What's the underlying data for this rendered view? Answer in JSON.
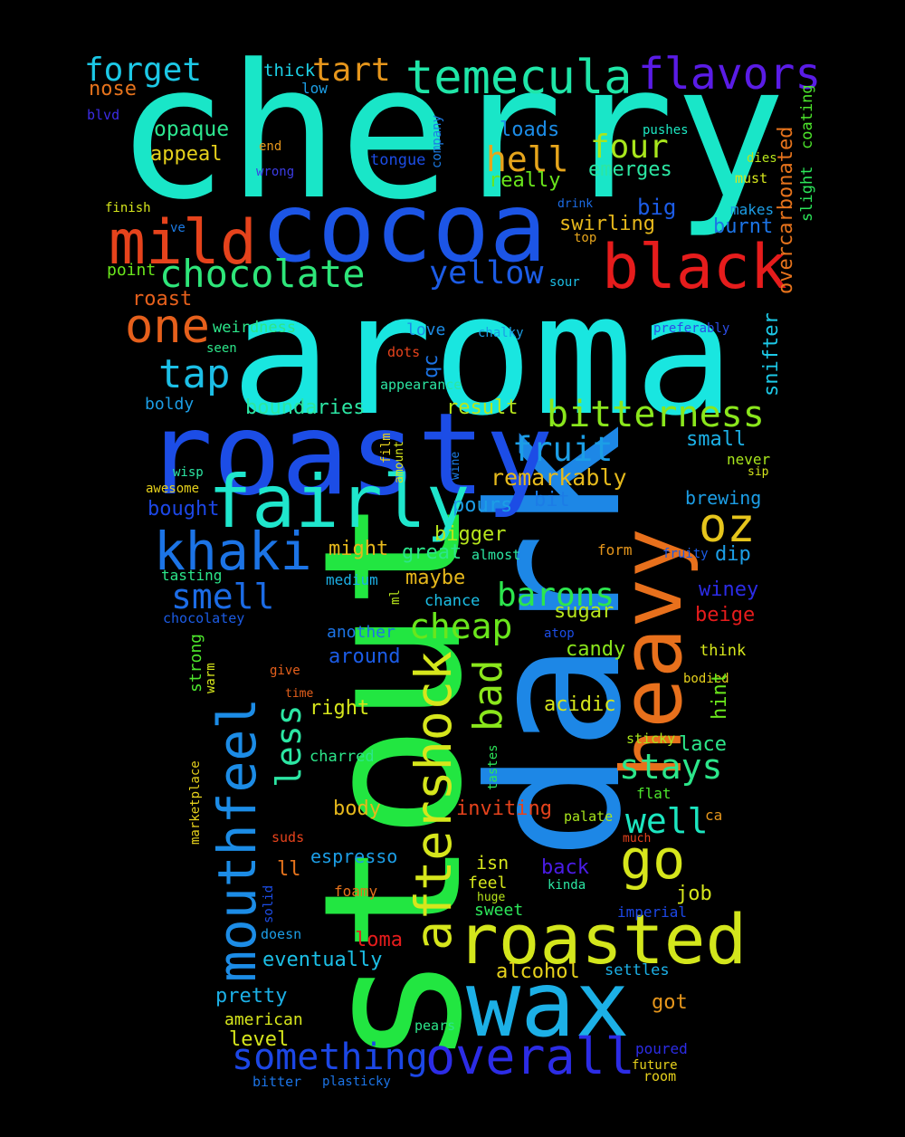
{
  "words": [
    {
      "text": "cherry",
      "color": "#19e6c8"
    },
    {
      "text": "aroma",
      "color": "#19e6e0"
    },
    {
      "text": "stout",
      "color": "#22e641"
    },
    {
      "text": "dark",
      "color": "#1d87e6"
    },
    {
      "text": "roasty",
      "color": "#1c4de6"
    },
    {
      "text": "cocoa",
      "color": "#1c55e6"
    },
    {
      "text": "heavy",
      "color": "#e8701c"
    },
    {
      "text": "wax",
      "color": "#1cb0e6"
    },
    {
      "text": "fairly",
      "color": "#1fe6cc"
    },
    {
      "text": "mouthfeel",
      "color": "#1c8ce6"
    },
    {
      "text": "aftershock",
      "color": "#d6e61c"
    },
    {
      "text": "roasted",
      "color": "#d3e61c"
    },
    {
      "text": "black",
      "color": "#e61c1c"
    },
    {
      "text": "mild",
      "color": "#e6431c"
    },
    {
      "text": "khaki",
      "color": "#1c74e6"
    },
    {
      "text": "overall",
      "color": "#2c2ce6"
    },
    {
      "text": "temecula",
      "color": "#1fe6a8"
    },
    {
      "text": "flavors",
      "color": "#5a1ce6"
    },
    {
      "text": "chocolate",
      "color": "#2ee67a"
    },
    {
      "text": "bitterness",
      "color": "#8ae61c"
    },
    {
      "text": "something",
      "color": "#1c47e6"
    },
    {
      "text": "go",
      "color": "#d6e61c"
    },
    {
      "text": "oz",
      "color": "#e6c51c"
    },
    {
      "text": "one",
      "color": "#e6601c"
    },
    {
      "text": "tap",
      "color": "#1cbfe6"
    },
    {
      "text": "forget",
      "color": "#1cc8e6"
    },
    {
      "text": "tart",
      "color": "#e6961c"
    },
    {
      "text": "yellow",
      "color": "#1c5ce6"
    },
    {
      "text": "fruit",
      "color": "#1c9ee6"
    },
    {
      "text": "bad",
      "color": "#8ae61c"
    },
    {
      "text": "cheap",
      "color": "#6ae61c"
    },
    {
      "text": "barons",
      "color": "#2ce64d"
    },
    {
      "text": "stays",
      "color": "#2ce68a"
    },
    {
      "text": "well",
      "color": "#1ce6c0"
    },
    {
      "text": "smell",
      "color": "#1c6ce6"
    },
    {
      "text": "hell",
      "color": "#e6a51c"
    },
    {
      "text": "four",
      "color": "#a8e61c"
    },
    {
      "text": "less",
      "color": "#2ce6a3"
    },
    {
      "text": "remarkably",
      "color": "#e6ba1c"
    },
    {
      "text": "boundaries",
      "color": "#2ce6a3"
    },
    {
      "text": "overcarbonated",
      "color": "#e6731c"
    },
    {
      "text": "snifter",
      "color": "#1cc8e6"
    },
    {
      "text": "opaque",
      "color": "#2ce68f"
    },
    {
      "text": "appeal",
      "color": "#e6d11c"
    },
    {
      "text": "nose",
      "color": "#e6731c"
    },
    {
      "text": "thick",
      "color": "#1cd0e6"
    },
    {
      "text": "low",
      "color": "#1c9ee6"
    },
    {
      "text": "blvd",
      "color": "#3c2ce6"
    },
    {
      "text": "end",
      "color": "#e6961c"
    },
    {
      "text": "wrong",
      "color": "#3c3ce6"
    },
    {
      "text": "loads",
      "color": "#1c8ce6"
    },
    {
      "text": "tongue",
      "color": "#1c4de6"
    },
    {
      "text": "company",
      "color": "#1c7ce6"
    },
    {
      "text": "emerges",
      "color": "#2ce6a3"
    },
    {
      "text": "really",
      "color": "#6ae61c"
    },
    {
      "text": "pushes",
      "color": "#1ce6c0"
    },
    {
      "text": "dies",
      "color": "#b8e61c"
    },
    {
      "text": "must",
      "color": "#d6e61c"
    },
    {
      "text": "makes",
      "color": "#1c9ee6"
    },
    {
      "text": "coating",
      "color": "#4de62c"
    },
    {
      "text": "slight",
      "color": "#2ce65a"
    },
    {
      "text": "finish",
      "color": "#d6e61c"
    },
    {
      "text": "ve",
      "color": "#1c7ce6"
    },
    {
      "text": "drink",
      "color": "#1c6ce6"
    },
    {
      "text": "top",
      "color": "#e6a51c"
    },
    {
      "text": "swirling",
      "color": "#e6b81c"
    },
    {
      "text": "big",
      "color": "#1c5ce6"
    },
    {
      "text": "burnt",
      "color": "#1c74e6"
    },
    {
      "text": "point",
      "color": "#6ae61c"
    },
    {
      "text": "roast",
      "color": "#e6601c"
    },
    {
      "text": "sour",
      "color": "#1cbfe6"
    },
    {
      "text": "weirdness",
      "color": "#2ce68a"
    },
    {
      "text": "seen",
      "color": "#2ce68a"
    },
    {
      "text": "dots",
      "color": "#e6431c"
    },
    {
      "text": "love",
      "color": "#1c8ce6"
    },
    {
      "text": "chalky",
      "color": "#1c9ee6"
    },
    {
      "text": "preferably",
      "color": "#2c4de6"
    },
    {
      "text": "qc",
      "color": "#1c74e6"
    },
    {
      "text": "appearance",
      "color": "#2ce6a3"
    },
    {
      "text": "boldy",
      "color": "#1c9ee6"
    },
    {
      "text": "result",
      "color": "#b8e61c"
    },
    {
      "text": "small",
      "color": "#1cb0e6"
    },
    {
      "text": "never",
      "color": "#a8e61c"
    },
    {
      "text": "sip",
      "color": "#d6e61c"
    },
    {
      "text": "wisp",
      "color": "#2ce6a3"
    },
    {
      "text": "awesome",
      "color": "#e6d11c"
    },
    {
      "text": "film",
      "color": "#e6d11c"
    },
    {
      "text": "amount",
      "color": "#d6e61c"
    },
    {
      "text": "wine",
      "color": "#1c7ce6"
    },
    {
      "text": "bought",
      "color": "#1c47e6"
    },
    {
      "text": "pours",
      "color": "#1c9ee6"
    },
    {
      "text": "bit",
      "color": "#1c7ce6"
    },
    {
      "text": "brewing",
      "color": "#1c9ee6"
    },
    {
      "text": "bigger",
      "color": "#b8e61c"
    },
    {
      "text": "might",
      "color": "#e6b81c"
    },
    {
      "text": "great",
      "color": "#2ce68a"
    },
    {
      "text": "almost",
      "color": "#2ce6a3"
    },
    {
      "text": "form",
      "color": "#e6961c"
    },
    {
      "text": "fruity",
      "color": "#1c5ce6"
    },
    {
      "text": "dip",
      "color": "#1c9ee6"
    },
    {
      "text": "tasting",
      "color": "#2ce68a"
    },
    {
      "text": "medium",
      "color": "#1cb0e6"
    },
    {
      "text": "maybe",
      "color": "#e6b81c"
    },
    {
      "text": "chance",
      "color": "#1cbfe6"
    },
    {
      "text": "winey",
      "color": "#2c2ce6"
    },
    {
      "text": "chocolatey",
      "color": "#1c5ce6"
    },
    {
      "text": "ml",
      "color": "#b8e61c"
    },
    {
      "text": "sugar",
      "color": "#b8e61c"
    },
    {
      "text": "beige",
      "color": "#e61c1c"
    },
    {
      "text": "another",
      "color": "#1c74e6"
    },
    {
      "text": "atop",
      "color": "#1c4de6"
    },
    {
      "text": "around",
      "color": "#1c5ce6"
    },
    {
      "text": "candy",
      "color": "#8ae61c"
    },
    {
      "text": "think",
      "color": "#d6e61c"
    },
    {
      "text": "strong",
      "color": "#4de62c"
    },
    {
      "text": "warm",
      "color": "#d6e61c"
    },
    {
      "text": "give",
      "color": "#e6601c"
    },
    {
      "text": "time",
      "color": "#e6601c"
    },
    {
      "text": "bodied",
      "color": "#e6d11c"
    },
    {
      "text": "hint",
      "color": "#6ae61c"
    },
    {
      "text": "right",
      "color": "#d6e61c"
    },
    {
      "text": "acidic",
      "color": "#d6e61c"
    },
    {
      "text": "charred",
      "color": "#2ce68a"
    },
    {
      "text": "sticky",
      "color": "#a8e61c"
    },
    {
      "text": "lace",
      "color": "#2ce68a"
    },
    {
      "text": "marketplace",
      "color": "#e6d11c"
    },
    {
      "text": "tastes",
      "color": "#2ce65a"
    },
    {
      "text": "body",
      "color": "#e6b81c"
    },
    {
      "text": "inviting",
      "color": "#e6431c"
    },
    {
      "text": "flat",
      "color": "#4de62c"
    },
    {
      "text": "ca",
      "color": "#e6961c"
    },
    {
      "text": "palate",
      "color": "#a8e61c"
    },
    {
      "text": "much",
      "color": "#e6431c"
    },
    {
      "text": "suds",
      "color": "#e6431c"
    },
    {
      "text": "espresso",
      "color": "#1c9ee6"
    },
    {
      "text": "isn",
      "color": "#d6e61c"
    },
    {
      "text": "back",
      "color": "#4a1ce6"
    },
    {
      "text": "ll",
      "color": "#e6731c"
    },
    {
      "text": "feel",
      "color": "#d6e61c"
    },
    {
      "text": "kinda",
      "color": "#2ce6a3"
    },
    {
      "text": "job",
      "color": "#d6e61c"
    },
    {
      "text": "huge",
      "color": "#b8e61c"
    },
    {
      "text": "foamy",
      "color": "#e6731c"
    },
    {
      "text": "solid",
      "color": "#1c4de6"
    },
    {
      "text": "sweet",
      "color": "#2ce65a"
    },
    {
      "text": "imperial",
      "color": "#1c47e6"
    },
    {
      "text": "doesn",
      "color": "#1c9ee6"
    },
    {
      "text": "loma",
      "color": "#e61c1c"
    },
    {
      "text": "eventually",
      "color": "#1cbfe6"
    },
    {
      "text": "alcohol",
      "color": "#e6d11c"
    },
    {
      "text": "settles",
      "color": "#1cb0e6"
    },
    {
      "text": "pretty",
      "color": "#1cb0e6"
    },
    {
      "text": "got",
      "color": "#e6961c"
    },
    {
      "text": "american",
      "color": "#d6e61c"
    },
    {
      "text": "pears",
      "color": "#2ce68a"
    },
    {
      "text": "level",
      "color": "#d6e61c"
    },
    {
      "text": "poured",
      "color": "#2c2ce6"
    },
    {
      "text": "future",
      "color": "#e6d11c"
    },
    {
      "text": "room",
      "color": "#e6d11c"
    },
    {
      "text": "bitter",
      "color": "#1c74e6"
    },
    {
      "text": "plasticky",
      "color": "#1c74e6"
    }
  ]
}
